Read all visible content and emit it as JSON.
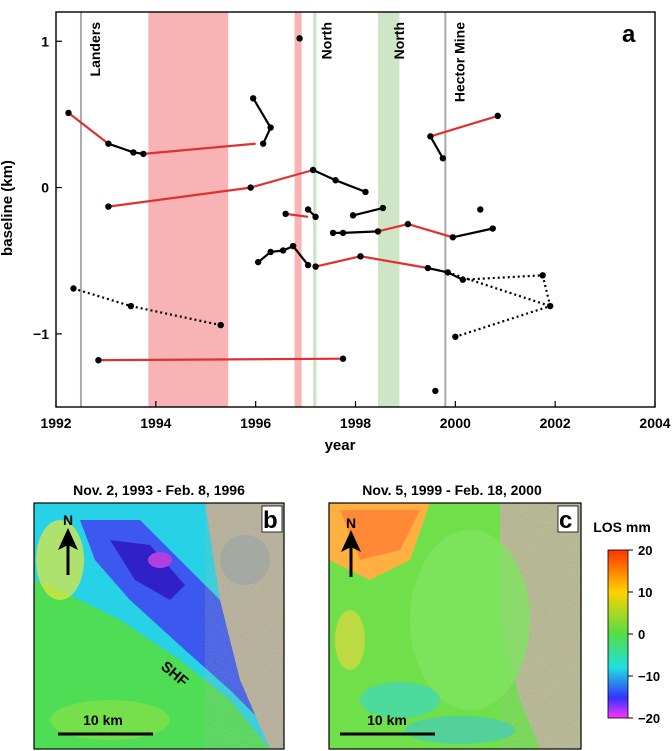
{
  "chart_data": [
    {
      "panel": "a",
      "type": "line",
      "xlabel": "year",
      "ylabel": "baseline (km)",
      "xlim": [
        1992,
        2004
      ],
      "ylim": [
        -1.5,
        1.2
      ],
      "xticks": [
        1992,
        1994,
        1996,
        1998,
        2000,
        2002,
        2004
      ],
      "yticks": [
        1,
        0,
        -1
      ],
      "ytick_labels": [
        "1",
        "0",
        "−1"
      ],
      "shaded_intervals": [
        {
          "x0": 1993.85,
          "x1": 1995.45,
          "color": "#f8b4b4"
        },
        {
          "x0": 1996.78,
          "x1": 1996.92,
          "color": "#f8b4b4"
        },
        {
          "x0": 1997.15,
          "x1": 1997.22,
          "color": "#cfe6c6"
        },
        {
          "x0": 1998.45,
          "x1": 1998.88,
          "color": "#cfe6c6"
        }
      ],
      "event_lines": [
        {
          "x": 1992.5,
          "label": "Landers",
          "color": "#aaaaaa"
        },
        {
          "x": 1999.8,
          "label": "Hector Mine",
          "color": "#aaaaaa"
        }
      ],
      "interval_labels": [
        {
          "x": 1997.2,
          "label": "North"
        },
        {
          "x": 1998.65,
          "label": "North"
        }
      ],
      "points": [
        [
          1992.25,
          0.51
        ],
        [
          1993.05,
          0.3
        ],
        [
          1993.55,
          0.24
        ],
        [
          1993.75,
          0.23
        ],
        [
          1995.95,
          0.61
        ],
        [
          1996.3,
          0.41
        ],
        [
          1996.15,
          0.3
        ],
        [
          1996.88,
          1.02
        ],
        [
          1992.35,
          -0.69
        ],
        [
          1993.5,
          -0.81
        ],
        [
          1995.3,
          -0.94
        ],
        [
          1993.05,
          -0.13
        ],
        [
          1995.9,
          0.0
        ],
        [
          1997.15,
          0.12
        ],
        [
          1997.6,
          0.05
        ],
        [
          1998.2,
          -0.03
        ],
        [
          1996.6,
          -0.18
        ],
        [
          1997.05,
          -0.15
        ],
        [
          1997.2,
          -0.2
        ],
        [
          1997.55,
          -0.31
        ],
        [
          1997.75,
          -0.31
        ],
        [
          1997.95,
          -0.19
        ],
        [
          1998.55,
          -0.14
        ],
        [
          1998.45,
          -0.3
        ],
        [
          1999.05,
          -0.25
        ],
        [
          1996.05,
          -0.51
        ],
        [
          1996.3,
          -0.44
        ],
        [
          1996.55,
          -0.43
        ],
        [
          1996.75,
          -0.4
        ],
        [
          1997.05,
          -0.53
        ],
        [
          1997.2,
          -0.54
        ],
        [
          1998.1,
          -0.47
        ],
        [
          1999.45,
          -0.55
        ],
        [
          1999.85,
          -0.58
        ],
        [
          2000.15,
          -0.63
        ],
        [
          1999.5,
          0.35
        ],
        [
          1999.75,
          0.2
        ],
        [
          2000.85,
          0.49
        ],
        [
          1999.95,
          -0.34
        ],
        [
          2000.5,
          -0.15
        ],
        [
          2000.75,
          -0.28
        ],
        [
          2001.75,
          -0.6
        ],
        [
          2001.9,
          -0.81
        ],
        [
          2000.0,
          -1.02
        ],
        [
          1992.85,
          -1.18
        ],
        [
          1997.75,
          -1.17
        ],
        [
          1999.6,
          -1.39
        ]
      ],
      "connections": [
        {
          "style": "red",
          "pts": [
            [
              1992.25,
              0.51
            ],
            [
              1993.05,
              0.3
            ]
          ]
        },
        {
          "style": "black",
          "pts": [
            [
              1993.05,
              0.3
            ],
            [
              1993.55,
              0.24
            ],
            [
              1993.75,
              0.23
            ]
          ]
        },
        {
          "style": "red",
          "pts": [
            [
              1993.75,
              0.23
            ],
            [
              1996.0,
              0.3
            ]
          ]
        },
        {
          "style": "black",
          "pts": [
            [
              1996.15,
              0.3
            ],
            [
              1996.3,
              0.41
            ],
            [
              1995.95,
              0.61
            ]
          ]
        },
        {
          "style": "dotted",
          "pts": [
            [
              1992.35,
              -0.69
            ],
            [
              1993.5,
              -0.81
            ],
            [
              1995.3,
              -0.94
            ]
          ]
        },
        {
          "style": "red",
          "pts": [
            [
              1993.05,
              -0.13
            ],
            [
              1995.9,
              0.0
            ]
          ]
        },
        {
          "style": "red",
          "pts": [
            [
              1995.9,
              0.0
            ],
            [
              1997.15,
              0.12
            ]
          ]
        },
        {
          "style": "black",
          "pts": [
            [
              1997.15,
              0.12
            ],
            [
              1997.6,
              0.05
            ],
            [
              1998.2,
              -0.03
            ]
          ]
        },
        {
          "style": "red",
          "pts": [
            [
              1996.6,
              -0.18
            ],
            [
              1997.05,
              -0.2
            ]
          ]
        },
        {
          "style": "black",
          "pts": [
            [
              1997.05,
              -0.15
            ],
            [
              1997.2,
              -0.2
            ]
          ]
        },
        {
          "style": "black",
          "pts": [
            [
              1997.95,
              -0.19
            ],
            [
              1998.55,
              -0.14
            ]
          ]
        },
        {
          "style": "black",
          "pts": [
            [
              1997.55,
              -0.31
            ],
            [
              1997.75,
              -0.31
            ],
            [
              1998.45,
              -0.3
            ]
          ]
        },
        {
          "style": "red",
          "pts": [
            [
              1998.45,
              -0.3
            ],
            [
              1999.05,
              -0.25
            ]
          ]
        },
        {
          "style": "black",
          "pts": [
            [
              1996.05,
              -0.51
            ],
            [
              1996.3,
              -0.44
            ],
            [
              1996.55,
              -0.43
            ],
            [
              1996.75,
              -0.4
            ],
            [
              1997.05,
              -0.53
            ]
          ]
        },
        {
          "style": "red",
          "pts": [
            [
              1997.2,
              -0.54
            ],
            [
              1998.1,
              -0.47
            ],
            [
              1999.45,
              -0.55
            ]
          ]
        },
        {
          "style": "black",
          "pts": [
            [
              1999.45,
              -0.55
            ],
            [
              1999.85,
              -0.58
            ],
            [
              2000.15,
              -0.63
            ]
          ]
        },
        {
          "style": "red",
          "pts": [
            [
              1999.05,
              -0.25
            ],
            [
              1999.95,
              -0.34
            ]
          ]
        },
        {
          "style": "red",
          "pts": [
            [
              1999.5,
              0.35
            ],
            [
              2000.85,
              0.49
            ]
          ]
        },
        {
          "style": "black",
          "pts": [
            [
              1999.5,
              0.35
            ],
            [
              1999.75,
              0.2
            ]
          ]
        },
        {
          "style": "black",
          "pts": [
            [
              1999.95,
              -0.34
            ],
            [
              2000.75,
              -0.28
            ]
          ]
        },
        {
          "style": "dotted",
          "pts": [
            [
              2000.15,
              -0.63
            ],
            [
              2001.75,
              -0.6
            ],
            [
              2001.9,
              -0.81
            ],
            [
              2000.0,
              -1.02
            ]
          ]
        },
        {
          "style": "dotted",
          "pts": [
            [
              1999.85,
              -0.58
            ],
            [
              2001.9,
              -0.81
            ]
          ]
        },
        {
          "style": "red",
          "pts": [
            [
              1992.85,
              -1.18
            ],
            [
              1997.75,
              -1.17
            ]
          ]
        }
      ],
      "style_colors": {
        "red": "#e03030",
        "black": "#000000",
        "dotted": "#000000"
      },
      "panel_label": "a"
    },
    {
      "panel": "b",
      "type": "heatmap",
      "title": "Nov. 2, 1993 - Feb. 8, 1996",
      "panel_label": "b",
      "north_label": "N",
      "fault_label": "SHF",
      "scale_label": "10 km"
    },
    {
      "panel": "c",
      "type": "heatmap",
      "title": "Nov. 5, 1999 - Feb. 18, 2000",
      "panel_label": "c",
      "north_label": "N",
      "scale_label": "10 km"
    }
  ],
  "colorbar": {
    "title": "LOS mm",
    "ticks": [
      "20",
      "10",
      "0",
      "−10",
      "−20"
    ],
    "values": [
      20,
      10,
      0,
      -10,
      -20
    ],
    "colors": [
      "#ff3300",
      "#ffd200",
      "#55dd44",
      "#20e0e0",
      "#3333ff",
      "#ff33ff"
    ]
  }
}
